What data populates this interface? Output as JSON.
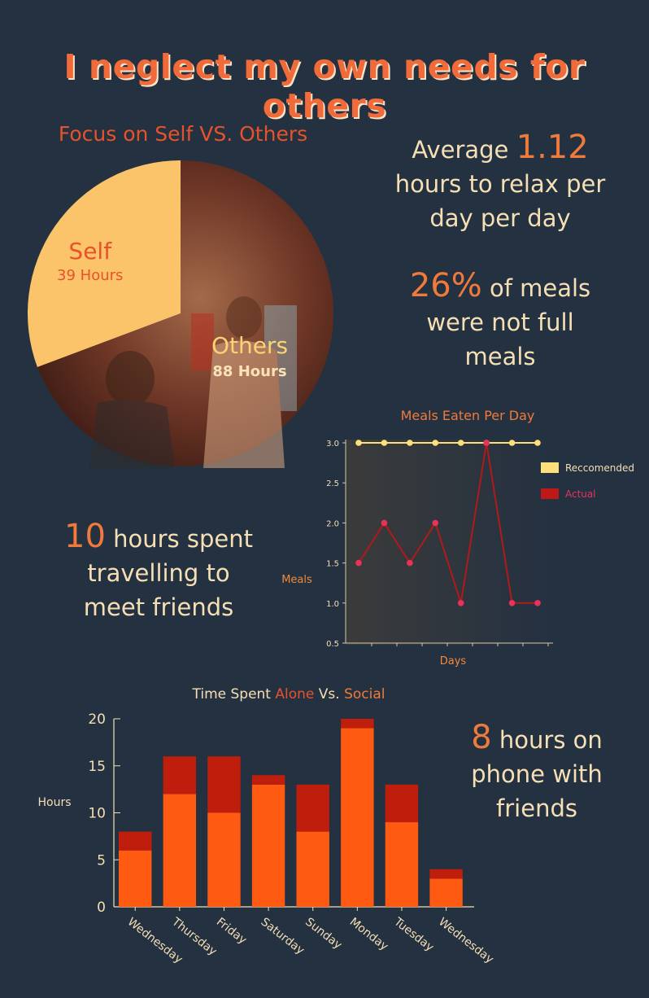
{
  "title": "I neglect my own needs for others",
  "stats": {
    "relax": {
      "big": "1.12",
      "pre": "Average ",
      "l1": "hours to relax per",
      "l2": "day per day"
    },
    "meals": {
      "big": "26%",
      "l0": " of meals",
      "l1": "were not full",
      "l2": "meals"
    },
    "travel": {
      "big": "10",
      "l0": " hours spent",
      "l1": "travelling to",
      "l2": "meet friends"
    },
    "phone": {
      "big": "8",
      "l0": " hours on",
      "l1": "phone with",
      "l2": "friends"
    }
  },
  "chart_data": [
    {
      "type": "pie",
      "title": "Focus on Self  VS. Others",
      "slices": [
        {
          "label": "Self",
          "value": 39,
          "value_label": "39 Hours",
          "color": "#fcc46a"
        },
        {
          "label": "Others",
          "value": 88,
          "value_label": "88 Hours",
          "color": "#7b3e2a"
        }
      ]
    },
    {
      "type": "line",
      "title": "Meals Eaten Per Day",
      "xlabel": "Days",
      "ylabel": "Meals",
      "ylim": [
        0.5,
        3.0
      ],
      "yticks": [
        "0.5",
        "1.0",
        "1.5",
        "2.0",
        "2.5",
        "3.0"
      ],
      "x": [
        1,
        2,
        3,
        4,
        5,
        6,
        7,
        8
      ],
      "legend_position": "right",
      "series": [
        {
          "name": "Reccomended",
          "values": [
            3,
            3,
            3,
            3,
            3,
            3,
            3,
            3
          ],
          "color": "#fde07a"
        },
        {
          "name": "Actual",
          "values": [
            1.5,
            2,
            1.5,
            2,
            1,
            3,
            1,
            1
          ],
          "color": "#c01818"
        }
      ]
    },
    {
      "type": "bar",
      "stacked": true,
      "title_parts": [
        "Time Spent ",
        "Alone",
        " Vs. ",
        "Social"
      ],
      "ylabel": "Hours",
      "ylim": [
        0,
        20
      ],
      "yticks": [
        "0",
        "5",
        "10",
        "15",
        "20"
      ],
      "categories": [
        "Wednesday",
        "Thursday",
        "Friday",
        "Saturday",
        "Sunday",
        "Monday",
        "Tuesday",
        "Wednesday"
      ],
      "series": [
        {
          "name": "Alone",
          "values": [
            6,
            12,
            10,
            13,
            8,
            19,
            9,
            3
          ],
          "color": "#ff5a12"
        },
        {
          "name": "Social",
          "values": [
            2,
            4,
            6,
            1,
            5,
            1,
            4,
            1
          ],
          "color": "#c01e0c"
        }
      ]
    }
  ]
}
